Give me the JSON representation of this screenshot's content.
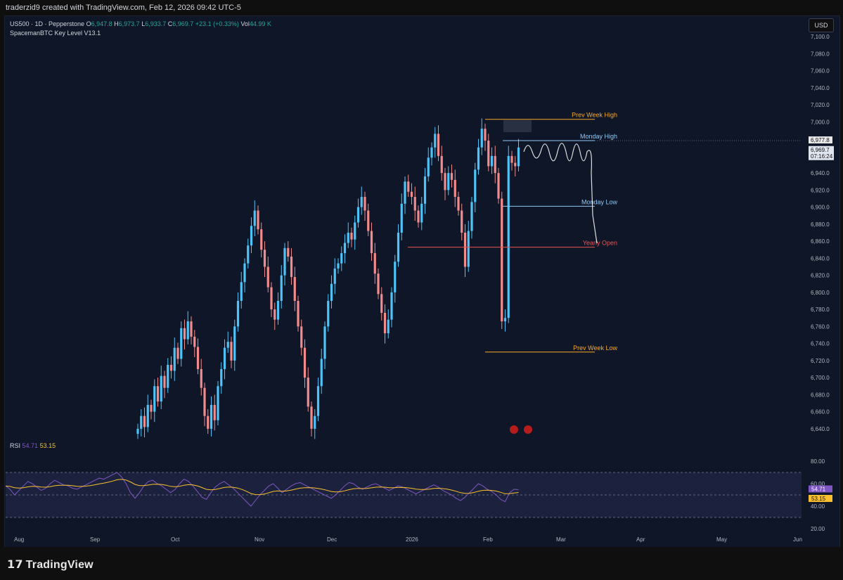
{
  "header": {
    "credit": "traderzid9 created with TradingView.com, Feb 12, 2026 09:42 UTC-5"
  },
  "legend": {
    "symbol": "US500 · 1D · Pepperstone",
    "o_label": "O",
    "o_value": "6,947.8",
    "h_label": "H",
    "h_value": "6,973.7",
    "l_label": "L",
    "l_value": "6,933.7",
    "c_label": "C",
    "c_value": "6,969.7",
    "change": "+23.1 (+0.33%)",
    "vol_label": "Vol",
    "vol_value": "44.99 K",
    "indicator": "SpacemanBTC Key Level V13.1"
  },
  "currency_button": "USD",
  "price_badge": {
    "high": "6,977.8",
    "last": "6,969.7",
    "countdown": "07:16:24"
  },
  "rsi": {
    "label": "RSI",
    "value1": "54.71",
    "value2": "53.15"
  },
  "footer": {
    "brand": "TradingView"
  },
  "colors": {
    "bull": "#2196f3",
    "bear": "#ef5350",
    "bull_light": "#4fc3f7",
    "bear_light": "#f28b8b",
    "rsi_line": "#7e57c2",
    "rsi_ma": "#fbc02d",
    "prev_week": "#f9a825",
    "monday": "#90caf9",
    "yearly_open": "#ef5350"
  },
  "chart_data": {
    "type": "candlestick",
    "y_axis": {
      "min": 6630,
      "max": 7110,
      "ticks": [
        7100,
        7080,
        7060,
        7040,
        7020,
        7000,
        6980,
        6960,
        6940,
        6920,
        6900,
        6880,
        6860,
        6840,
        6820,
        6800,
        6780,
        6760,
        6740,
        6720,
        6700,
        6680,
        6660,
        6640
      ],
      "tick_labels": [
        "7,100.0",
        "7,080.0",
        "7,060.0",
        "7,040.0",
        "7,020.0",
        "7,000.0",
        "6,980.0",
        "6,960.0",
        "6,940.0",
        "6,920.0",
        "6,900.0",
        "6,880.0",
        "6,860.0",
        "6,840.0",
        "6,820.0",
        "6,800.0",
        "6,780.0",
        "6,760.0",
        "6,740.0",
        "6,720.0",
        "6,700.0",
        "6,680.0",
        "6,660.0",
        "6,640.0"
      ]
    },
    "x_axis": {
      "labels": [
        "Aug",
        "Sep",
        "Oct",
        "Nov",
        "Dec",
        "2026",
        "Feb",
        "Mar",
        "Apr",
        "May",
        "Jun"
      ]
    },
    "closes": [
      6640,
      6655,
      6642,
      6668,
      6660,
      6690,
      6672,
      6702,
      6688,
      6715,
      6708,
      6735,
      6722,
      6758,
      6745,
      6766,
      6748,
      6736,
      6710,
      6688,
      6655,
      6640,
      6668,
      6650,
      6690,
      6710,
      6735,
      6742,
      6720,
      6760,
      6790,
      6812,
      6834,
      6855,
      6878,
      6896,
      6874,
      6850,
      6830,
      6806,
      6780,
      6768,
      6790,
      6820,
      6852,
      6842,
      6818,
      6790,
      6760,
      6735,
      6700,
      6666,
      6640,
      6655,
      6690,
      6722,
      6760,
      6790,
      6810,
      6828,
      6834,
      6846,
      6858,
      6870,
      6862,
      6882,
      6900,
      6912,
      6896,
      6872,
      6846,
      6822,
      6798,
      6776,
      6752,
      6768,
      6800,
      6836,
      6870,
      6904,
      6930,
      6918,
      6912,
      6896,
      6882,
      6904,
      6936,
      6958,
      6970,
      6986,
      6960,
      6940,
      6920,
      6940,
      6932,
      6912,
      6896,
      6870,
      6830,
      6872,
      6906,
      6944,
      6970,
      6992,
      6978,
      6948,
      6960,
      6940,
      6910,
      6766,
      6770,
      6960,
      6952,
      6948,
      6970
    ],
    "key_levels": [
      {
        "name": "Prev Week High",
        "value": 7003
      },
      {
        "name": "Monday High",
        "value": 6978
      },
      {
        "name": "Monday Low",
        "value": 6901
      },
      {
        "name": "Yearly Open",
        "value": 6853
      },
      {
        "name": "Prev Week Low",
        "value": 6730
      }
    ],
    "rsi": {
      "levels": [
        "80.00",
        "60.00",
        "40.00",
        "20.00"
      ],
      "current": 54.71,
      "ma": 53.15,
      "values": [
        58,
        55,
        50,
        54,
        58,
        62,
        60,
        57,
        54,
        56,
        60,
        63,
        61,
        59,
        58,
        56,
        55,
        57,
        59,
        61,
        63,
        65,
        64,
        66,
        68,
        70,
        66,
        60,
        52,
        47,
        52,
        58,
        62,
        63,
        60,
        58,
        55,
        52,
        55,
        60,
        64,
        62,
        58,
        53,
        48,
        46,
        52,
        57,
        60,
        62,
        59,
        56,
        52,
        48,
        44,
        40,
        45,
        50,
        54,
        58,
        60,
        56,
        52,
        55,
        58,
        60,
        61,
        59,
        57,
        55,
        53,
        51,
        49,
        47,
        50,
        54,
        58,
        61,
        60,
        57,
        55,
        57,
        59,
        60,
        58,
        56,
        54,
        56,
        58,
        57,
        55,
        53,
        51,
        53,
        55,
        57,
        59,
        57,
        54,
        52,
        50,
        47,
        45,
        48,
        52,
        56,
        60,
        58,
        55,
        53,
        50,
        46,
        44,
        52,
        55,
        54.71
      ]
    }
  }
}
